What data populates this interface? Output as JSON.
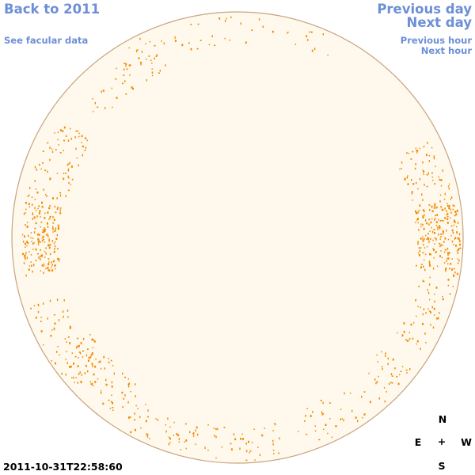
{
  "nav": {
    "back_label": "Back to 2011",
    "facular_label": "See facular data",
    "prev_day_label": "Previous day",
    "next_day_label": "Next day",
    "prev_hour_label": "Previous hour",
    "next_hour_label": "Next hour"
  },
  "timestamp": "2011-10-31T22:58:60",
  "compass": {
    "north": "N",
    "east": "E",
    "center": "+",
    "west": "W",
    "south": "S"
  },
  "colors": {
    "link": "#6d8fd6",
    "disk_fill": "#fff8ec",
    "disk_outline": "#c8a47e",
    "facula": "#f08a00"
  }
}
